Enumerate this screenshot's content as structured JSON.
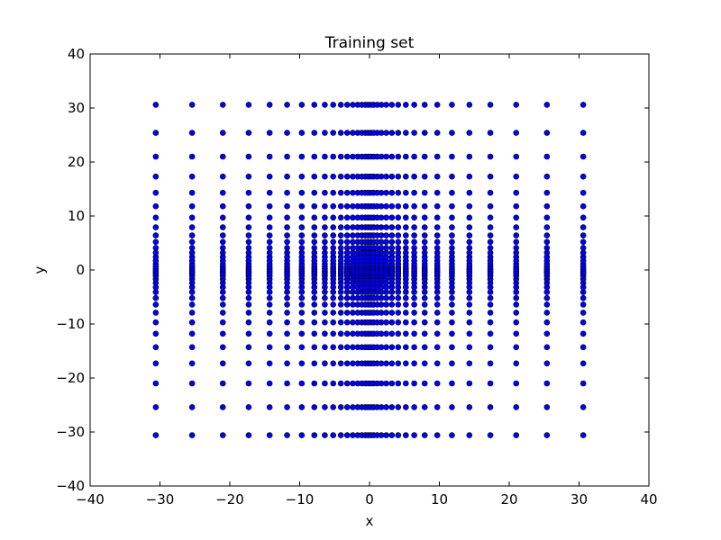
{
  "chart_data": {
    "type": "scatter",
    "title": "Training set",
    "xlabel": "x",
    "ylabel": "y",
    "xlim": [
      -40,
      40
    ],
    "ylim": [
      -40,
      40
    ],
    "x_ticks": [
      -40,
      -30,
      -20,
      -10,
      0,
      10,
      20,
      30,
      40
    ],
    "y_ticks": [
      -40,
      -30,
      -20,
      -10,
      0,
      10,
      20,
      30,
      40
    ],
    "x_tick_labels": [
      "−40",
      "−30",
      "−20",
      "−10",
      "0",
      "10",
      "20",
      "30",
      "40"
    ],
    "y_tick_labels": [
      "−40",
      "−30",
      "−20",
      "−10",
      "0",
      "10",
      "20",
      "30",
      "40"
    ],
    "grid": false,
    "legend": "none",
    "marker": "circle",
    "marker_color": "#0000ff",
    "marker_edge_color": "#000000",
    "points_layout": "grid: every combination of x in grid_x and y in grid_y",
    "grid_x": [
      -30.6,
      -25.4,
      -21.0,
      -17.3,
      -14.3,
      -11.8,
      -9.7,
      -7.9,
      -6.4,
      -5.2,
      -4.1,
      -3.2,
      -2.4,
      -1.7,
      -1.1,
      -0.6,
      -0.2,
      0.2,
      0.6,
      1.1,
      1.7,
      2.4,
      3.2,
      4.1,
      5.2,
      6.4,
      7.9,
      9.7,
      11.8,
      14.3,
      17.3,
      21.0,
      25.4,
      30.6
    ],
    "grid_y": [
      -30.6,
      -25.4,
      -21.0,
      -17.3,
      -14.3,
      -11.8,
      -9.7,
      -7.9,
      -6.4,
      -5.2,
      -4.1,
      -3.2,
      -2.4,
      -1.7,
      -1.1,
      -0.6,
      -0.2,
      0.2,
      0.6,
      1.1,
      1.7,
      2.4,
      3.2,
      4.1,
      5.2,
      6.4,
      7.9,
      9.7,
      11.8,
      14.3,
      17.3,
      21.0,
      25.4,
      30.6
    ]
  }
}
